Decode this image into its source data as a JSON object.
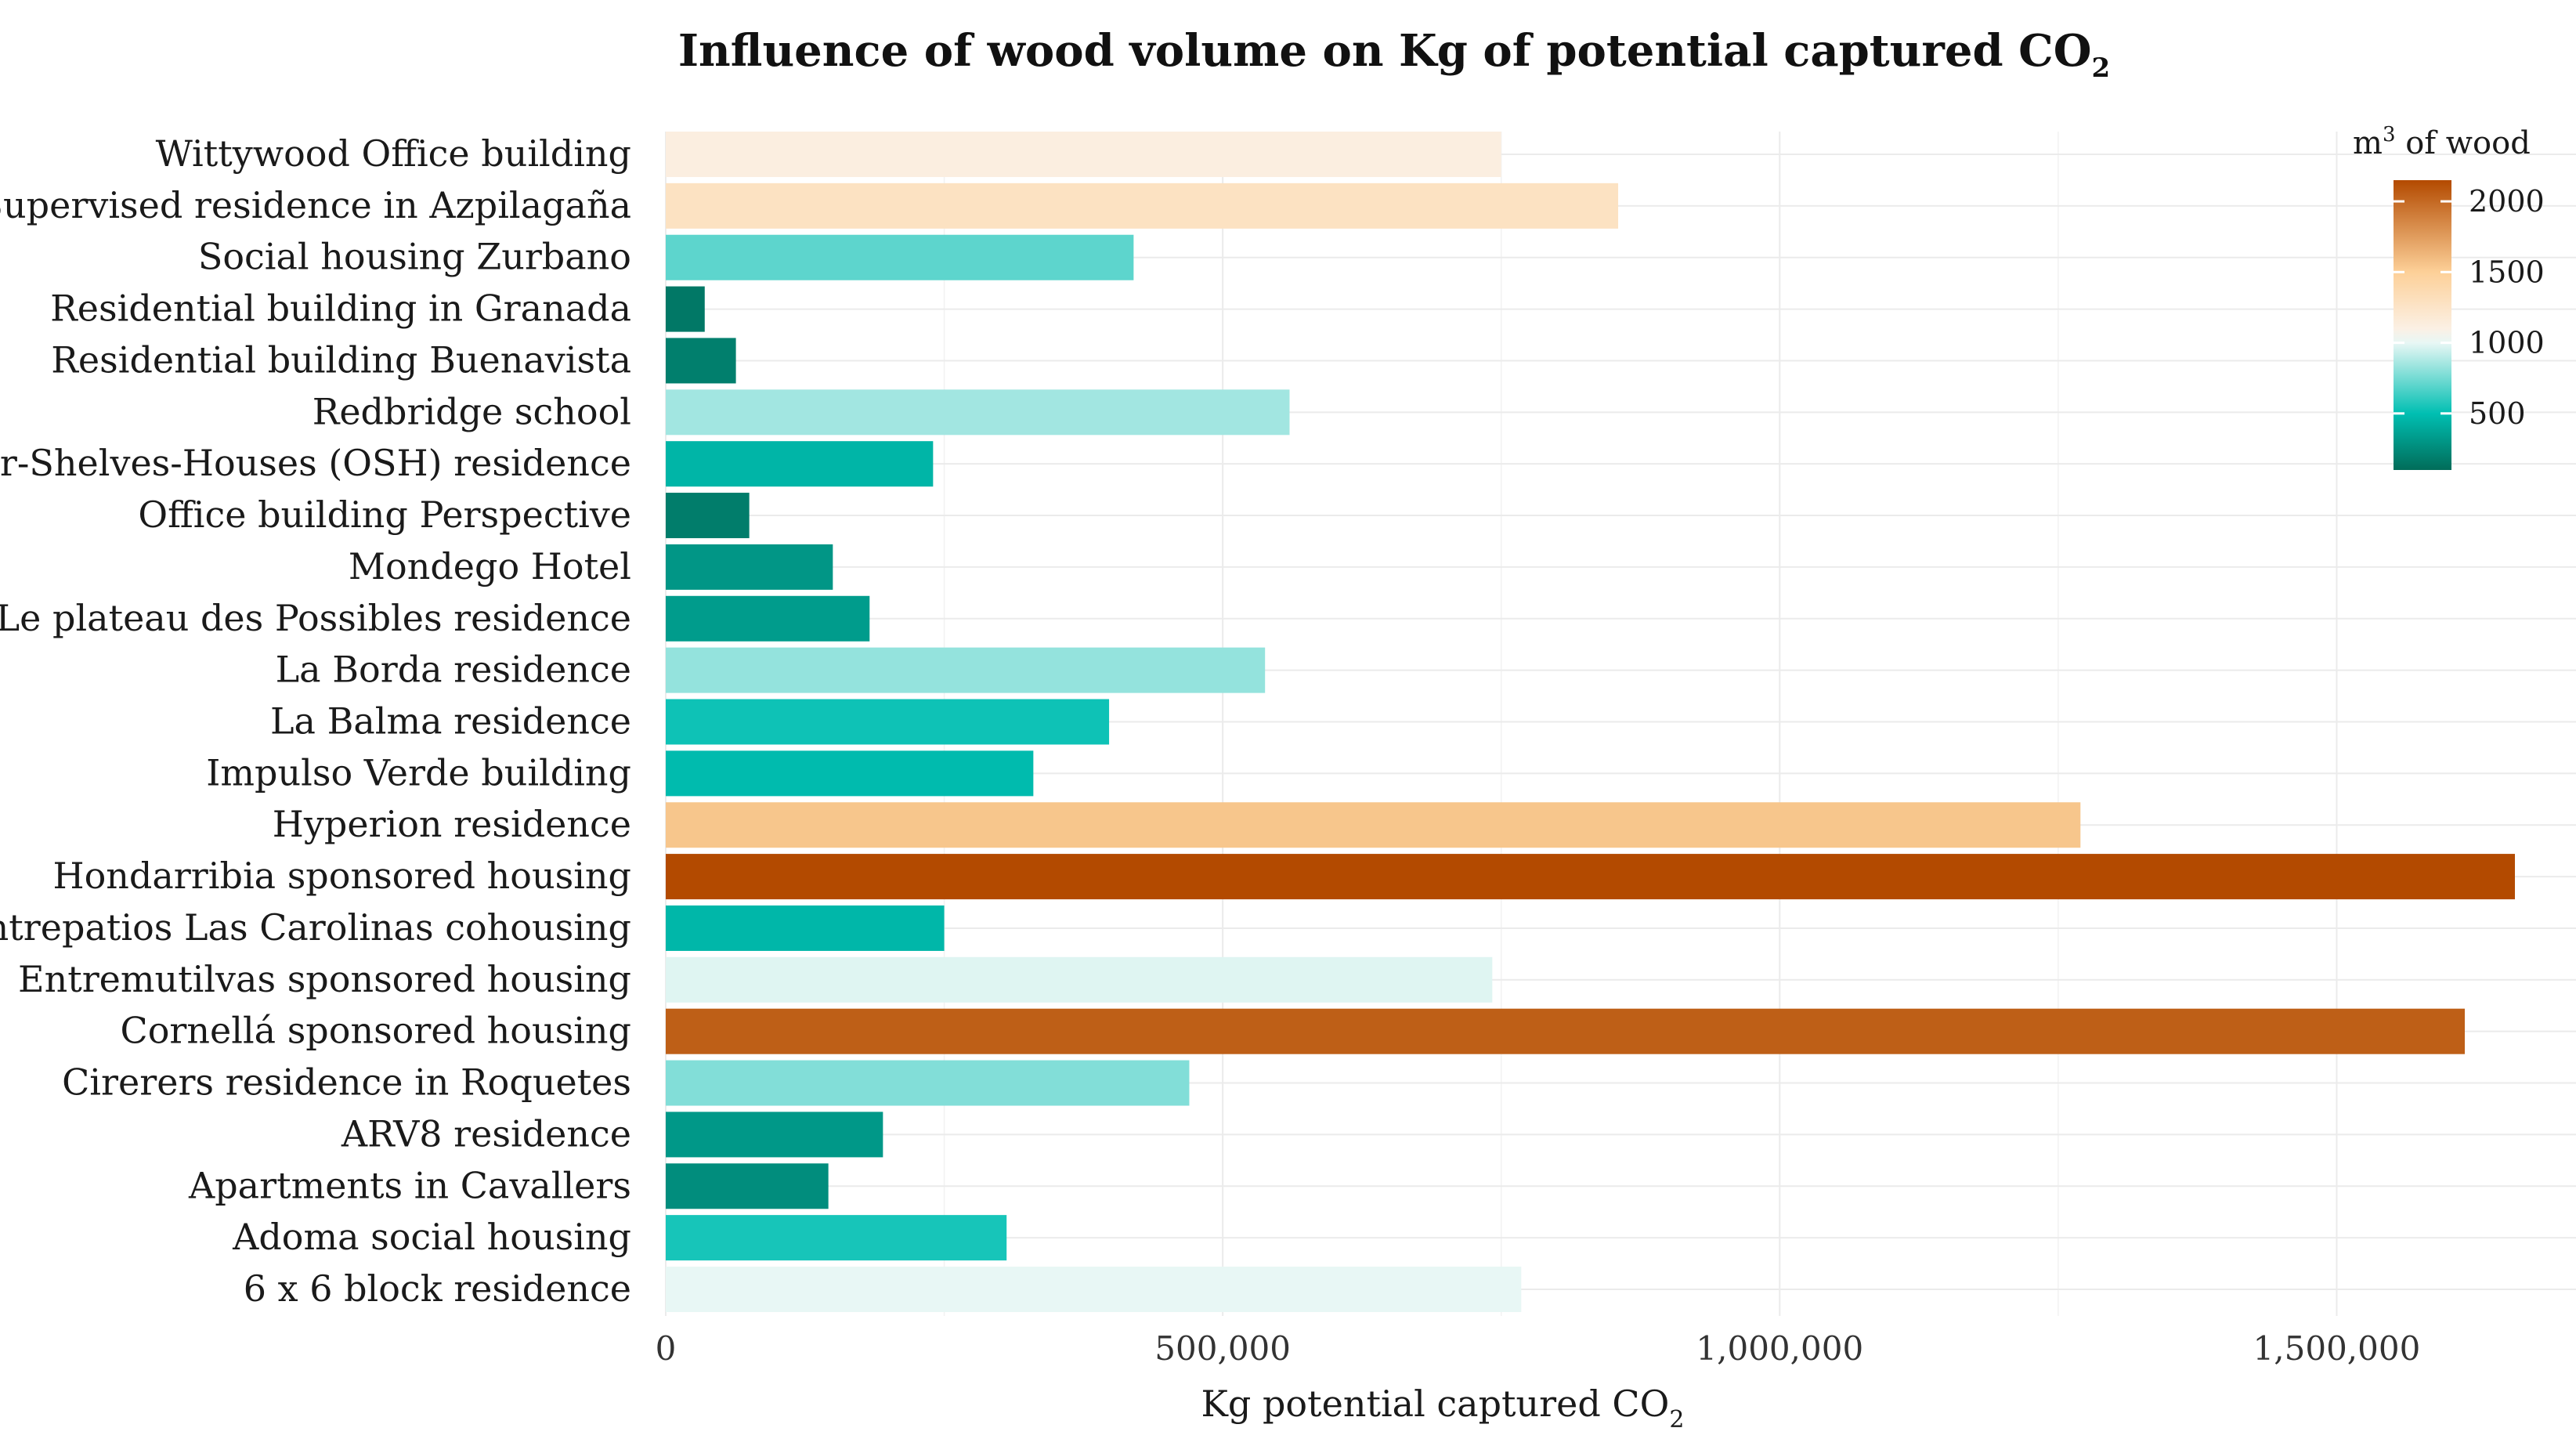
{
  "chart_data": {
    "type": "bar",
    "orientation": "horizontal",
    "title": "Influence of wood volume on Kg of potential captured CO",
    "title_subscript": "2",
    "xlabel": "Kg potential captured CO",
    "xlabel_subscript": "2",
    "ylabel": "",
    "xlim": [
      0,
      1700000
    ],
    "x_ticks": [
      0,
      500000,
      1000000,
      1500000
    ],
    "x_tick_labels": [
      "0",
      "500,000",
      "1,000,000",
      "1,500,000"
    ],
    "grid": true,
    "legend": {
      "title": "m",
      "title_superscript": "3",
      "title_suffix": " of wood",
      "placement": "top-right",
      "range": [
        100,
        2150
      ],
      "ticks": [
        500,
        1000,
        1500,
        2000
      ],
      "tick_labels": [
        "500",
        "1000",
        "1500",
        "2000"
      ],
      "color_stops": [
        {
          "value": 100,
          "color": "#016c59"
        },
        {
          "value": 500,
          "color": "#00bfb2"
        },
        {
          "value": 1000,
          "color": "#e8f7f5"
        },
        {
          "value": 1100,
          "color": "#fbf0e4"
        },
        {
          "value": 1500,
          "color": "#fdd098"
        },
        {
          "value": 2150,
          "color": "#b34a00"
        }
      ]
    },
    "categories": [
      "Wittywood Office building",
      "Supervised residence in Azpilagaña",
      "Social housing Zurbano",
      "Residential building in Granada",
      "Residential building Buenavista",
      "Redbridge school",
      "Our-Shelves-Houses (OSH) residence",
      "Office building Perspective",
      "Mondego Hotel",
      "Le plateau des Possibles residence",
      "La Borda residence",
      "La Balma residence",
      "Impulso Verde building",
      "Hyperion residence",
      "Hondarribia sponsored housing",
      "Entrepatios Las Carolinas cohousing",
      "Entremutilvas sponsored housing",
      "Cornellá sponsored housing",
      "Cirerers residence in Roquetes",
      "ARV8 residence",
      "Apartments in Cavallers",
      "Adoma social housing",
      "6 x 6 block residence"
    ],
    "values": [
      750000,
      855000,
      420000,
      35000,
      63000,
      560000,
      240000,
      75000,
      150000,
      183000,
      538000,
      398000,
      330000,
      1270000,
      1660000,
      250000,
      742000,
      1615000,
      470000,
      195000,
      146000,
      306000,
      768000
    ],
    "wood_m3": [
      1120,
      1280,
      700,
      160,
      190,
      850,
      450,
      180,
      300,
      330,
      820,
      530,
      480,
      1550,
      2150,
      460,
      980,
      2050,
      780,
      310,
      260,
      550,
      1000
    ]
  }
}
